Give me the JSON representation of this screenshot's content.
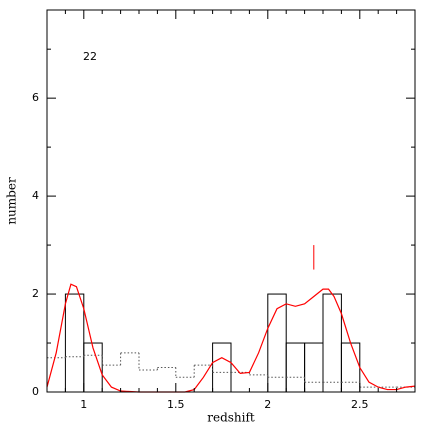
{
  "chart_data": {
    "type": "histogram",
    "xlabel": "redshift",
    "ylabel": "number",
    "annotation": "22",
    "xlim": [
      0.8,
      2.8
    ],
    "ylim": [
      0,
      7.8
    ],
    "xticks": [
      1,
      1.5,
      2,
      2.5
    ],
    "yticks": [
      0,
      2,
      4,
      6
    ],
    "xticks_minor": [
      0.9,
      1.1,
      1.2,
      1.3,
      1.4,
      1.6,
      1.7,
      1.8,
      1.9,
      2.1,
      2.2,
      2.3,
      2.4,
      2.6,
      2.7
    ],
    "yticks_minor": [
      1,
      3,
      5,
      7
    ],
    "bins": [
      0.9,
      1.0,
      1.1,
      1.2,
      1.3,
      1.4,
      1.5,
      1.6,
      1.7,
      1.8,
      1.9,
      2.0,
      2.1,
      2.2,
      2.3,
      2.4,
      2.5
    ],
    "counts": [
      2,
      1,
      0,
      0,
      0,
      0,
      0,
      0,
      1,
      0,
      0,
      2,
      1,
      1,
      2,
      1
    ],
    "color": "#000000",
    "expected": {
      "color": "#555555",
      "bins": [
        0.8,
        0.9,
        1.0,
        1.1,
        1.2,
        1.3,
        1.4,
        1.5,
        1.6,
        1.7,
        1.8,
        1.9,
        2.0,
        2.1,
        2.2,
        2.3,
        2.4,
        2.5,
        2.6,
        2.7,
        2.8
      ],
      "values": [
        0.7,
        0.72,
        0.75,
        0.55,
        0.8,
        0.45,
        0.5,
        0.3,
        0.55,
        0.4,
        0.4,
        0.35,
        0.3,
        0.3,
        0.2,
        0.2,
        0.2,
        0.1,
        0.1,
        0.1
      ]
    },
    "curve": {
      "color": "#ff0000",
      "x": [
        0.8,
        0.85,
        0.9,
        0.93,
        0.96,
        1.0,
        1.05,
        1.1,
        1.15,
        1.2,
        1.3,
        1.4,
        1.5,
        1.55,
        1.6,
        1.65,
        1.7,
        1.75,
        1.8,
        1.85,
        1.9,
        1.95,
        2.0,
        2.05,
        2.1,
        2.15,
        2.2,
        2.25,
        2.3,
        2.33,
        2.36,
        2.4,
        2.45,
        2.5,
        2.55,
        2.6,
        2.65,
        2.7,
        2.75,
        2.8
      ],
      "values": [
        0.1,
        0.8,
        1.8,
        2.2,
        2.15,
        1.7,
        0.9,
        0.35,
        0.1,
        0.02,
        0,
        0,
        0,
        0,
        0.05,
        0.3,
        0.6,
        0.7,
        0.6,
        0.38,
        0.4,
        0.8,
        1.3,
        1.7,
        1.8,
        1.75,
        1.8,
        1.95,
        2.1,
        2.1,
        1.95,
        1.6,
        1.0,
        0.5,
        0.2,
        0.1,
        0.05,
        0.05,
        0.1,
        0.12
      ]
    },
    "marker": {
      "color": "#ff0000",
      "x": 2.25,
      "y": [
        2.5,
        3.0
      ]
    }
  }
}
